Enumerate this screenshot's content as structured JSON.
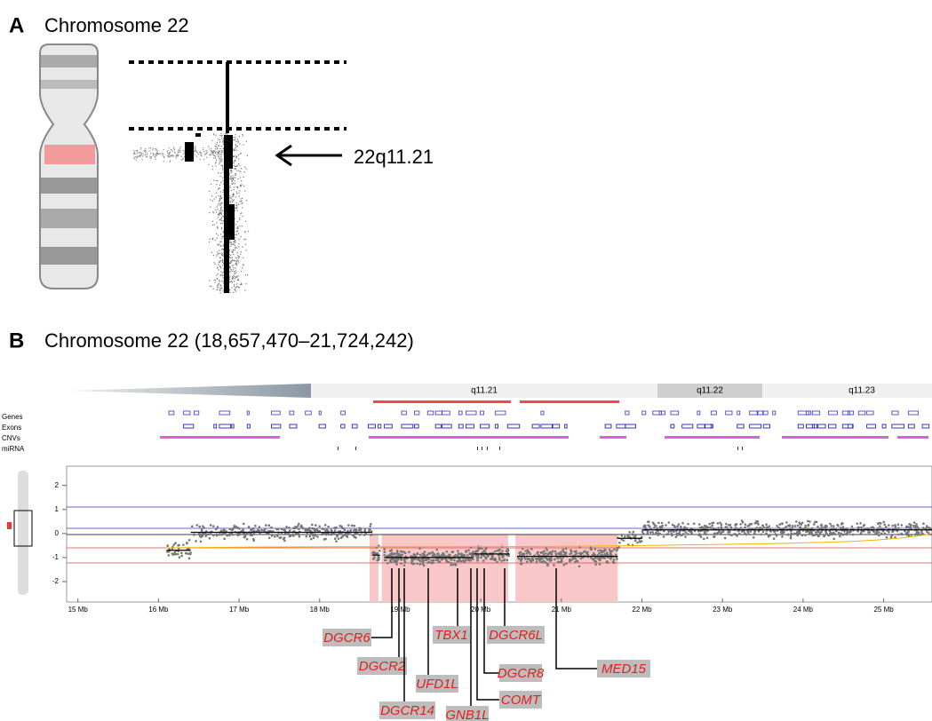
{
  "panel_a": {
    "label": "A",
    "title": "Chromosome 22",
    "region_label": "22q11.21"
  },
  "panel_b": {
    "label": "B",
    "title": "Chromosome 22 (18,657,470–21,724,242)",
    "bands": [
      "q11.21",
      "q11.22",
      "q11.23"
    ],
    "tracks": [
      "Genes",
      "Exons",
      "CNVs",
      "miRNA"
    ]
  },
  "chart_data": {
    "type": "scatter",
    "ylim": [
      -2.85,
      2.8
    ],
    "yticks": [
      2,
      1,
      0,
      -1,
      -2
    ],
    "xlim": [
      14.86,
      25.6
    ],
    "xticks": [
      {
        "value": 15,
        "label": "15 Mb"
      },
      {
        "value": 16,
        "label": "16 Mb"
      },
      {
        "value": 17,
        "label": "17 Mb"
      },
      {
        "value": 18,
        "label": "18 Mb"
      },
      {
        "value": 19,
        "label": "19 Mb"
      },
      {
        "value": 20,
        "label": "20 Mb"
      },
      {
        "value": 21,
        "label": "21 Mb"
      },
      {
        "value": 22,
        "label": "22 Mb"
      },
      {
        "value": 23,
        "label": "23 Mb"
      },
      {
        "value": 24,
        "label": "24 Mb"
      },
      {
        "value": 25,
        "label": "25 Mb"
      }
    ],
    "genes": [
      "DGCR6",
      "DGCR2",
      "DGCR14",
      "UFD1L",
      "TBX1",
      "GNB1L",
      "COMT",
      "DGCR8",
      "DGCR6L",
      "MED15"
    ]
  }
}
